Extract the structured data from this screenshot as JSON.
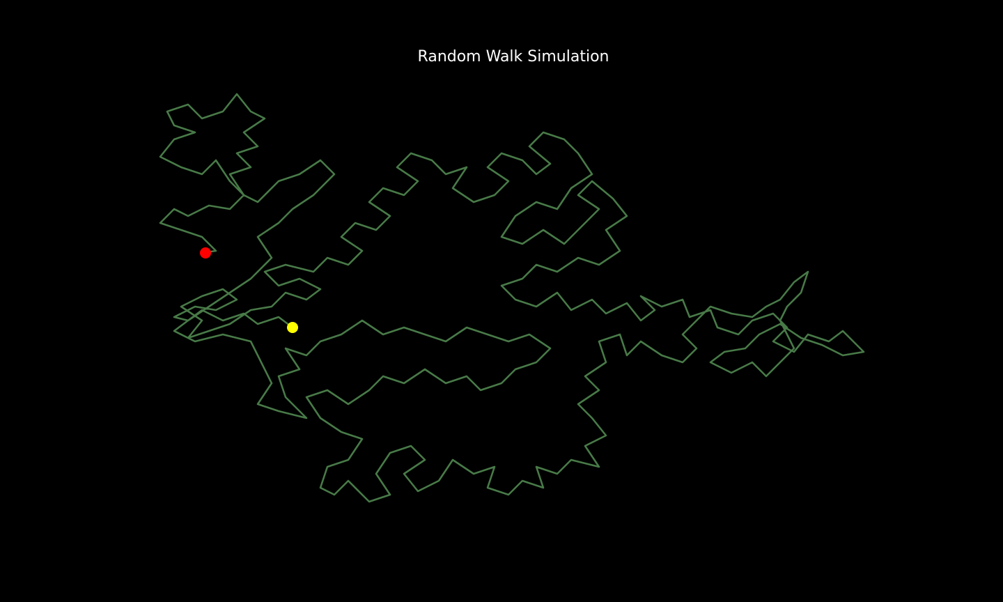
{
  "chart_data": {
    "type": "line",
    "title": "Random Walk Simulation",
    "line_color": "#487a48",
    "start_marker_color": "#ffff00",
    "end_marker_color": "#ff0000",
    "axis_visible": false,
    "xlim": [
      -24,
      84
    ],
    "ylim": [
      -29,
      36
    ],
    "x": [
      0,
      -2,
      -5,
      -7,
      -10,
      -13,
      -15,
      -17,
      -14,
      -11,
      -8,
      -10,
      -13,
      -16,
      -13,
      -15,
      -12,
      -9,
      -6,
      -3,
      -1,
      2,
      4,
      1,
      -2,
      -4,
      -1,
      3,
      5,
      8,
      10,
      7,
      9,
      12,
      14,
      11,
      13,
      16,
      18,
      15,
      17,
      20,
      22,
      25,
      23,
      26,
      29,
      31,
      28,
      30,
      33,
      35,
      37,
      34,
      36,
      39,
      41,
      43,
      40,
      38,
      35,
      32,
      30,
      33,
      36,
      39,
      42,
      44,
      41,
      43,
      46,
      48,
      45,
      47,
      44,
      41,
      38,
      35,
      33,
      30,
      32,
      35,
      38,
      40,
      43,
      45,
      48,
      50,
      52,
      50,
      53,
      56,
      57,
      60,
      61,
      64,
      66,
      69,
      71,
      69,
      72,
      74,
      77,
      79,
      82,
      79,
      76,
      73,
      70,
      67,
      65,
      62,
      60,
      63,
      66,
      68,
      70,
      72,
      70,
      71,
      73,
      74,
      72,
      70,
      68,
      66,
      63,
      60,
      58,
      56,
      58,
      56,
      53,
      50,
      48,
      47,
      44,
      45,
      42,
      44,
      41,
      43,
      45,
      42,
      44,
      40,
      38,
      35,
      36,
      33,
      31,
      28,
      29,
      26,
      23,
      21,
      18,
      16,
      19,
      17,
      14,
      12,
      14,
      11,
      8,
      6,
      4,
      5,
      8,
      10,
      7,
      4,
      2,
      5,
      8,
      11,
      13,
      16,
      19,
      22,
      25,
      27,
      30,
      32,
      35,
      37,
      34,
      31,
      28,
      25,
      22,
      19,
      16,
      13,
      10,
      7,
      4,
      2,
      -1,
      1,
      -2,
      -1,
      2,
      -2,
      -5,
      -3,
      -6,
      -10,
      -14,
      -17,
      -15,
      -12,
      -9,
      -6,
      -3,
      -5,
      -2,
      0,
      3,
      6,
      4,
      1,
      -2,
      -5,
      -7,
      -9,
      -11,
      -13,
      -16,
      -19,
      -17,
      -14,
      -17,
      -18,
      -15,
      -13,
      -10,
      -8,
      -6,
      -4,
      -7,
      -5,
      -8,
      -6,
      -9,
      -7,
      -9,
      -12,
      -15,
      -17,
      -19,
      -16,
      -13,
      -11,
      -13,
      -12.5
    ],
    "y": [
      0,
      1.5,
      0.5,
      2,
      1,
      2.5,
      1,
      1.5,
      3,
      2.5,
      4,
      5.5,
      4.5,
      3,
      1,
      -1.5,
      -0.5,
      0.5,
      2.5,
      3,
      5,
      4,
      5.5,
      7,
      6,
      8,
      9,
      8,
      10,
      9,
      11,
      13,
      15,
      14,
      16,
      18,
      20,
      19,
      21,
      23,
      25,
      24,
      22,
      23,
      20,
      18,
      19,
      21,
      23,
      25,
      24,
      22,
      23.5,
      26,
      28,
      27,
      25,
      22,
      20,
      17,
      18,
      16,
      13,
      12,
      14,
      12,
      15,
      17,
      19,
      21,
      18.5,
      16,
      14,
      11,
      9,
      10,
      8,
      9,
      7,
      6,
      4,
      3,
      5,
      2.5,
      4,
      2,
      3.5,
      1,
      2.5,
      4.5,
      3,
      4,
      1.5,
      2.5,
      0,
      -1,
      1,
      2,
      0,
      -2,
      -3.5,
      -1,
      -2,
      -0.5,
      -3.5,
      -4,
      -2.5,
      -1.5,
      0.5,
      -1,
      -3,
      -3.5,
      -5,
      -6.5,
      -5,
      -7,
      -5,
      -3,
      1,
      3,
      5,
      8,
      6.5,
      4,
      3,
      1.5,
      2,
      3,
      1,
      -1,
      -3,
      -5,
      -4,
      -2,
      -4,
      -1,
      -2,
      -5,
      -7,
      -9,
      -11,
      -13,
      -15.5,
      -17,
      -20,
      -19,
      -21,
      -20,
      -23,
      -22,
      -24,
      -23,
      -20,
      -21,
      -19,
      -22,
      -23.5,
      -21,
      -19,
      -17,
      -18,
      -21,
      -24,
      -25,
      -22,
      -24,
      -23,
      -20,
      -19,
      -16,
      -15,
      -13,
      -10,
      -9,
      -11,
      -9,
      -7,
      -8,
      -6,
      -8,
      -7,
      -9,
      -8,
      -6,
      -5,
      -3,
      -1,
      -2,
      -1,
      0,
      -2,
      -1,
      0,
      -1,
      1,
      -1,
      -2,
      -4,
      -3,
      -6,
      -7,
      -10,
      -13,
      -12,
      -11,
      -8,
      -2,
      -1,
      -2,
      -0.5,
      1,
      3,
      5,
      7,
      10,
      13,
      15,
      17,
      19,
      22,
      24,
      22,
      21,
      18,
      19,
      21,
      24,
      22,
      23,
      24.5,
      27,
      28,
      29,
      31,
      32,
      30,
      31,
      33.5,
      31,
      30,
      28,
      26,
      25,
      23,
      22,
      19,
      17,
      17.5,
      16,
      17,
      15,
      14,
      13,
      11,
      10.7,
      10.7
    ]
  }
}
